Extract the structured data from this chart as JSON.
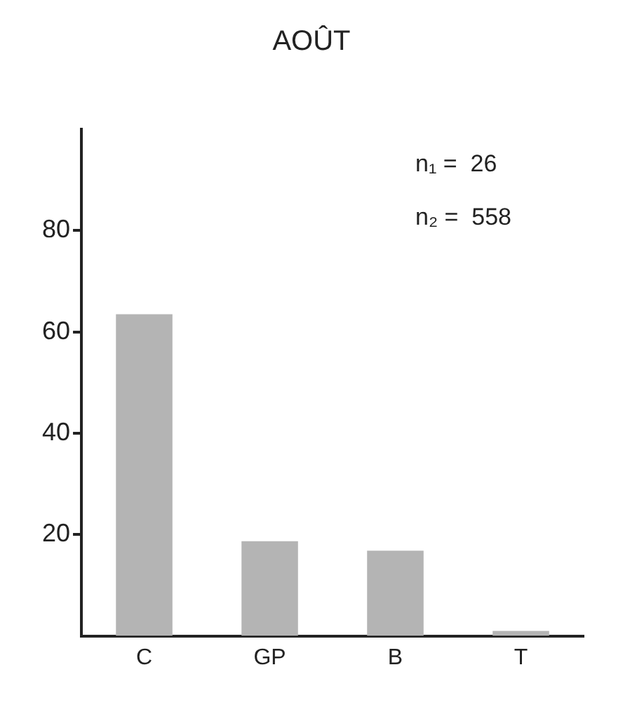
{
  "chart_data": {
    "type": "bar",
    "title": "AOÛT",
    "categories": [
      "C",
      "GP",
      "B",
      "T"
    ],
    "values": [
      63.5,
      18.7,
      16.8,
      1
    ],
    "color": "#b4b4b4",
    "ylim": [
      0,
      100
    ],
    "yticks": [
      20,
      40,
      60,
      80
    ],
    "grid": false,
    "legend": false,
    "annotations": [
      "n₁ =  26",
      "n₂ =  558"
    ]
  }
}
